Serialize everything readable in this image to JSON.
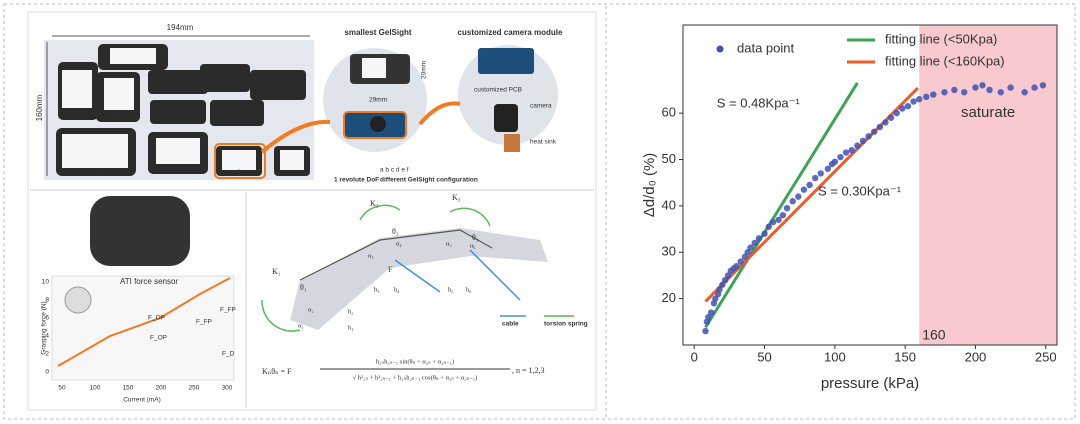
{
  "left_panel": {
    "dimensions": {
      "width": "194mm",
      "height": "160mm"
    },
    "module_letters": [
      "a",
      "b",
      "c",
      "d",
      "e",
      "f"
    ],
    "gelsight": {
      "title": "smallest GelSight",
      "width": "29mm",
      "height": "20mm"
    },
    "camera_module": {
      "title": "customized camera module",
      "pcb": "customized PCB",
      "camera": "camera",
      "heat_sink": "heat sink"
    },
    "legend": {
      "dof": "1 revolute DoF",
      "letters": "a b c d e f",
      "config": "different GelSight configuration"
    },
    "force_plot": {
      "sensor": "ATI force sensor",
      "ylabel": "Grasping force (N)",
      "xlabel": "Current (mA)",
      "yticks": [
        "0",
        "2",
        "4",
        "6",
        "8",
        "10"
      ],
      "xticks": [
        "50",
        "100",
        "150",
        "200",
        "250",
        "300"
      ],
      "forces": [
        "F_FP",
        "F_FP",
        "F_OP",
        "F_OP",
        "F_D"
      ]
    },
    "mechanism": {
      "springs": [
        "K₁",
        "K₂",
        "K₃"
      ],
      "angles": [
        "θ₁",
        "θ₂",
        "θ₃"
      ],
      "alphas": [
        "α₁",
        "α₂",
        "α₃",
        "α₄",
        "α₅",
        "α₆"
      ],
      "heights": [
        "h₁",
        "h₂",
        "h₃",
        "h₄",
        "h₅",
        "h₆"
      ],
      "force": "F",
      "cable": "cable",
      "spring": "torsion spring",
      "formula_left": "Kₙθₙ = F",
      "numerator": "h₂ₙh₂ₙ₋₁ sin(θₙ + α₂ₙ + α₂ₙ₋₁)",
      "denominator": "√ h²₂ₙ + h²₂ₙ₋₁ + h₂ₙh₂ₙ₋₁ cos(θₙ + α₂ₙ + α₂ₙ₋₁)",
      "formula_right": ", n = 1,2,3"
    }
  },
  "chart_data": {
    "type": "scatter",
    "xlabel": "pressure (kPa)",
    "ylabel": "Δd/d₀ (%)",
    "xlim": [
      -8,
      258
    ],
    "ylim": [
      10,
      79
    ],
    "xticks": [
      0,
      50,
      100,
      150,
      200,
      250
    ],
    "yticks": [
      20,
      30,
      40,
      50,
      60
    ],
    "series": [
      {
        "name": "data point",
        "color": "#3f51b5",
        "x": [
          8,
          9,
          10,
          12,
          14,
          15,
          17,
          18,
          20,
          22,
          24,
          26,
          28,
          30,
          33,
          36,
          38,
          40,
          43,
          46,
          50,
          53,
          56,
          60,
          63,
          66,
          70,
          74,
          78,
          82,
          86,
          90,
          95,
          98,
          100,
          104,
          108,
          112,
          116,
          120,
          124,
          128,
          132,
          136,
          140,
          144,
          148,
          152,
          156,
          160,
          165,
          170,
          178,
          185,
          192,
          200,
          205,
          210,
          218,
          225,
          235,
          242,
          248
        ],
        "y": [
          13,
          15,
          16,
          17,
          19,
          20,
          21,
          22,
          23,
          24,
          25,
          26,
          26.5,
          27,
          28,
          29,
          30,
          31,
          32,
          33,
          34,
          35.5,
          36.5,
          37,
          38,
          39.5,
          41,
          42,
          43.5,
          44.5,
          46,
          47,
          48,
          49,
          49.5,
          50.5,
          51.5,
          52,
          53,
          54,
          55,
          56,
          57,
          58,
          59,
          60,
          61,
          61.5,
          62.5,
          63,
          63.5,
          64,
          64.5,
          65,
          64.5,
          65.5,
          66,
          65,
          64.5,
          65.5,
          64.5,
          65.5,
          66
        ]
      }
    ],
    "fit_lines": [
      {
        "name": "fitting line (<50Kpa)",
        "color": "#3aa655",
        "x": [
          8,
          116
        ],
        "y": [
          13.8,
          66.5
        ],
        "label": "S = 0.48Kpa⁻¹"
      },
      {
        "name": "fitting line (<160Kpa)",
        "color": "#f05a28",
        "x": [
          8,
          159
        ],
        "y": [
          19.4,
          65.4
        ],
        "label": "S = 0.30Kpa⁻¹"
      }
    ],
    "threshold": 160,
    "region_label": "saturate",
    "region_color": "#f8c9cf"
  }
}
